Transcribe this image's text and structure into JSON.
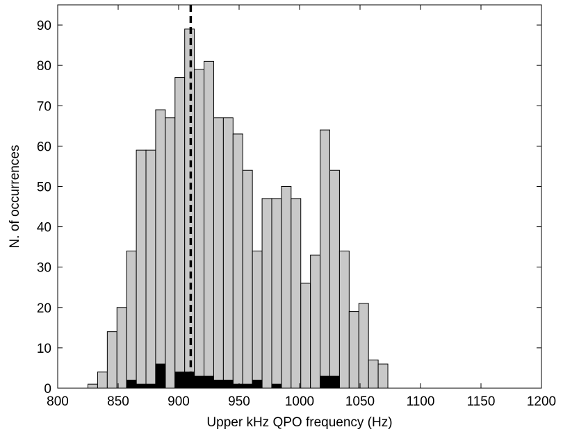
{
  "chart_data": {
    "type": "bar",
    "title": "",
    "xlabel": "Upper kHz QPO frequency (Hz)",
    "ylabel": "N. of occurrences",
    "xlim": [
      800,
      1200
    ],
    "ylim": [
      0,
      95
    ],
    "xticks": [
      "800",
      "850",
      "900",
      "950",
      "1000",
      "1050",
      "1100",
      "1150",
      "1200"
    ],
    "yticks": [
      "0",
      "10",
      "20",
      "30",
      "40",
      "50",
      "60",
      "70",
      "80",
      "90"
    ],
    "bin_width": 8,
    "bin_starts": [
      825,
      833,
      841,
      849,
      857,
      865,
      873,
      881,
      889,
      897,
      905,
      913,
      921,
      929,
      937,
      945,
      953,
      961,
      969,
      977,
      985,
      993,
      1001,
      1009,
      1017,
      1025,
      1033,
      1041,
      1049,
      1057,
      1065,
      1073,
      1081,
      1089,
      1097,
      1105,
      1113,
      1121,
      1129
    ],
    "series": [
      {
        "values": [
          1,
          4,
          14,
          20,
          34,
          59,
          59,
          69,
          67,
          77,
          89,
          79,
          81,
          67,
          67,
          63,
          54,
          34,
          47,
          47,
          50,
          47,
          26,
          33,
          64,
          54,
          34,
          19,
          21,
          7,
          6,
          0,
          0,
          0,
          0,
          0,
          0,
          0,
          0
        ],
        "color": "#c8c8c8"
      },
      {
        "values": [
          0,
          0,
          0,
          0,
          2,
          1,
          1,
          6,
          0,
          4,
          4,
          3,
          3,
          2,
          2,
          1,
          1,
          2,
          0,
          1,
          0,
          0,
          0,
          0,
          3,
          3,
          0,
          0,
          0,
          0,
          0,
          0,
          0,
          0,
          0,
          0,
          0,
          0,
          0
        ],
        "color": "#000000"
      }
    ],
    "reference_line": {
      "x": 910,
      "style": "dashed",
      "color": "#000000"
    },
    "grid": false,
    "legend": false
  }
}
